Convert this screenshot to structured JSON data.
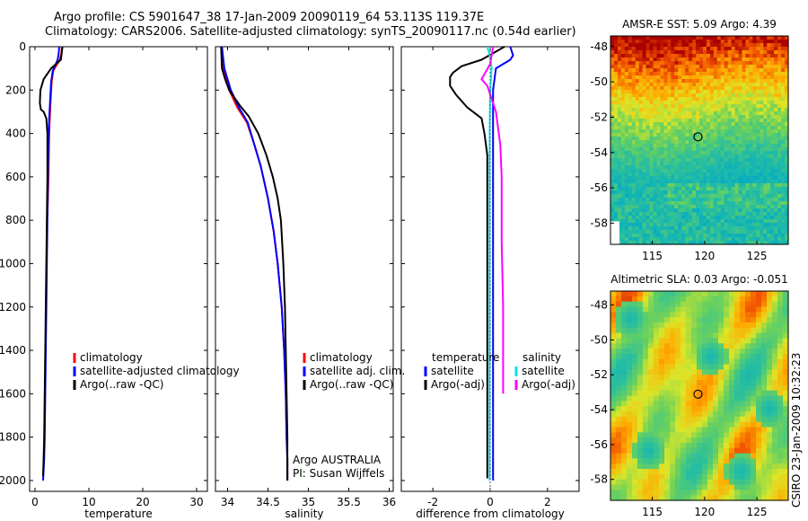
{
  "title": {
    "line1": "Argo profile: CS 5901647_38 17-Jan-2009 20090119_64 53.113S 119.37E",
    "line2": "Climatology: CARS2006. Satellite-adjusted climatology: synTS_20090117.nc (0.54d earlier)"
  },
  "stamp": "CSIRO 23-Jan-2009 10:32:23",
  "colors": {
    "climatology": "#ff0000",
    "satellite": "#0000ff",
    "argo": "#000000",
    "sal_satellite": "#00e5e5",
    "sal_argo": "#ff00ff"
  },
  "chart_data": [
    {
      "type": "line",
      "name": "temperature",
      "xlabel": "temperature",
      "ylabel": "",
      "xlim": [
        -1,
        32
      ],
      "ylim": [
        2050,
        0
      ],
      "xticks": [
        0,
        10,
        20,
        30
      ],
      "yticks": [
        0,
        200,
        400,
        600,
        800,
        1000,
        1200,
        1400,
        1600,
        1800,
        2000
      ],
      "legend": [
        "climatology",
        "satellite-adjusted climatology",
        "Argo(..raw -QC)"
      ],
      "series": [
        {
          "name": "climatology",
          "color": "#ff0000",
          "x": [
            5.0,
            4.9,
            4.6,
            3.4,
            3.1,
            2.9,
            2.7,
            2.6,
            2.5,
            2.4,
            2.3
          ],
          "y": [
            0,
            30,
            60,
            110,
            160,
            250,
            350,
            450,
            600,
            700,
            780
          ]
        },
        {
          "name": "satellite-adjusted climatology",
          "color": "#0000ff",
          "x": [
            4.5,
            4.4,
            4.2,
            3.3,
            3.0,
            2.8,
            2.6,
            2.5,
            2.4,
            2.3,
            2.2,
            2.1,
            2.0,
            1.9,
            1.8,
            1.7,
            1.6,
            1.5
          ],
          "y": [
            0,
            30,
            60,
            110,
            160,
            250,
            350,
            450,
            600,
            800,
            1000,
            1200,
            1400,
            1600,
            1800,
            1900,
            1950,
            2000
          ]
        },
        {
          "name": "Argo(..raw -QC)",
          "color": "#000000",
          "x": [
            5.1,
            4.8,
            3.0,
            1.6,
            1.0,
            0.9,
            1.1,
            1.6,
            2.1,
            2.3,
            2.3,
            2.2,
            2.1,
            2.0,
            1.9,
            1.8,
            1.7,
            1.6,
            1.5
          ],
          "y": [
            0,
            60,
            100,
            150,
            200,
            260,
            290,
            300,
            330,
            400,
            600,
            800,
            1000,
            1200,
            1400,
            1600,
            1800,
            1900,
            1980
          ]
        }
      ]
    },
    {
      "type": "line",
      "name": "salinity",
      "xlabel": "salinity",
      "ylabel": "",
      "xlim": [
        33.85,
        36.05
      ],
      "ylim": [
        2050,
        0
      ],
      "xticks": [
        34,
        34.5,
        35,
        35.5,
        36
      ],
      "xtick_labels": [
        "34",
        "34.5",
        "35",
        "35.5",
        "36"
      ],
      "legend": [
        "climatology",
        "satellite adj. clim.",
        "Argo(..raw -QC)"
      ],
      "annotation": [
        "Argo AUSTRALIA",
        "PI: Susan Wijffels"
      ],
      "series": [
        {
          "name": "climatology",
          "color": "#ff0000",
          "x": [
            33.92,
            33.95,
            34.02,
            34.12,
            34.24,
            34.33,
            34.41,
            34.5,
            34.57,
            34.62,
            34.67,
            34.7,
            34.72,
            34.73,
            34.74,
            34.74
          ],
          "y": [
            0,
            100,
            200,
            280,
            350,
            450,
            550,
            700,
            850,
            1000,
            1200,
            1400,
            1600,
            1800,
            1900,
            2000
          ]
        },
        {
          "name": "satellite adj. clim.",
          "color": "#0000ff",
          "x": [
            33.93,
            33.96,
            34.04,
            34.14,
            34.25,
            34.33,
            34.41,
            34.5,
            34.57,
            34.62,
            34.67,
            34.7,
            34.72,
            34.73,
            34.74,
            34.74
          ],
          "y": [
            0,
            100,
            200,
            280,
            350,
            450,
            550,
            700,
            850,
            1000,
            1200,
            1400,
            1600,
            1800,
            1900,
            2000
          ]
        },
        {
          "name": "Argo(..raw -QC)",
          "color": "#000000",
          "x": [
            33.92,
            33.93,
            33.97,
            34.02,
            34.15,
            34.26,
            34.38,
            34.48,
            34.56,
            34.62,
            34.66,
            34.69,
            34.71,
            34.72,
            34.73,
            34.74,
            34.74
          ],
          "y": [
            0,
            100,
            150,
            200,
            270,
            320,
            400,
            500,
            600,
            700,
            800,
            1000,
            1200,
            1400,
            1600,
            1800,
            2000
          ]
        }
      ]
    },
    {
      "type": "line",
      "name": "difference",
      "xlabel": "difference from climatology",
      "ylabel": "",
      "xlim": [
        -3.1,
        3.1
      ],
      "ylim": [
        2050,
        0
      ],
      "xticks": [
        -2,
        0,
        2
      ],
      "legend_left": [
        "temperature",
        "satellite",
        "Argo(-adj)"
      ],
      "legend_right": [
        "salinity",
        "satellite",
        "Argo(-adj)"
      ],
      "series": [
        {
          "name": "temperature satellite",
          "color": "#0000ff",
          "x": [
            0.7,
            0.8,
            0.7,
            0.2,
            0.1,
            0.1,
            0.1,
            0.1,
            0.1,
            0.1,
            0.1
          ],
          "y": [
            0,
            40,
            60,
            100,
            200,
            400,
            800,
            1200,
            1600,
            1900,
            2000
          ]
        },
        {
          "name": "temperature Argo(-adj)",
          "color": "#000000",
          "x": [
            0.5,
            -0.3,
            -1.0,
            -1.3,
            -1.4,
            -1.4,
            -1.2,
            -0.8,
            -0.3,
            -0.2,
            -0.1,
            -0.1,
            -0.1,
            -0.1,
            -0.1,
            -0.1,
            -0.1,
            -0.1
          ],
          "y": [
            0,
            60,
            90,
            120,
            140,
            180,
            220,
            280,
            330,
            400,
            500,
            700,
            900,
            1200,
            1500,
            1800,
            1950,
            1990
          ]
        },
        {
          "name": "salinity satellite",
          "color": "#00e5e5",
          "x": [
            -0.1,
            0.0,
            0.05,
            0.0,
            -0.02,
            -0.02,
            -0.02,
            -0.02,
            -0.02,
            -0.02
          ],
          "y": [
            0,
            50,
            100,
            200,
            400,
            800,
            1200,
            1600,
            1900,
            2000
          ]
        },
        {
          "name": "salinity Argo(-adj)",
          "color": "#ff00ff",
          "x": [
            0.1,
            0.0,
            -0.3,
            -0.1,
            0.2,
            0.35,
            0.4,
            0.4,
            0.45,
            0.45,
            0.45
          ],
          "y": [
            0,
            80,
            150,
            180,
            300,
            450,
            600,
            900,
            1200,
            1500,
            1600
          ]
        }
      ]
    },
    {
      "type": "heatmap",
      "name": "sst-map",
      "title": "AMSR-E SST: 5.09  Argo: 4.39",
      "xlim": [
        111,
        128
      ],
      "ylim": [
        -59.2,
        -47.4
      ],
      "xticks": [
        115,
        120,
        125
      ],
      "yticks": [
        -48,
        -50,
        -52,
        -54,
        -56,
        -58
      ],
      "argo_point": {
        "lon": 119.37,
        "lat": -53.113
      }
    },
    {
      "type": "heatmap",
      "name": "sla-map",
      "title": "Altimetric SLA: 0.03  Argo: -0.051",
      "xlim": [
        111,
        128
      ],
      "ylim": [
        -59.2,
        -47.2
      ],
      "xticks": [
        115,
        120,
        125
      ],
      "yticks": [
        -48,
        -50,
        -52,
        -54,
        -56,
        -58
      ],
      "argo_point": {
        "lon": 119.37,
        "lat": -53.113
      }
    }
  ]
}
